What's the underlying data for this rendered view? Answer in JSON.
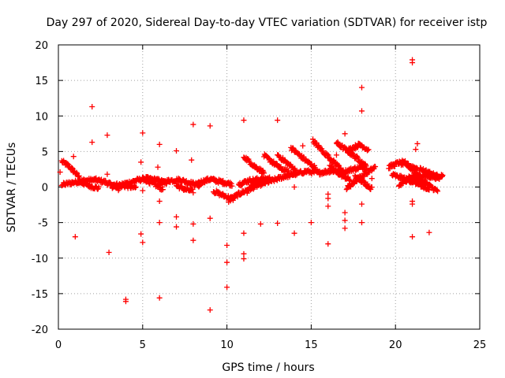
{
  "chart_data": {
    "type": "scatter",
    "title": "Day 297 of 2020, Sidereal Day-to-day VTEC variation (SDTVAR) for receiver istp",
    "xlabel": "GPS time / hours",
    "ylabel": "SDTVAR / TECUs",
    "xlim": [
      0,
      25
    ],
    "ylim": [
      -20,
      20
    ],
    "xticks": [
      0,
      5,
      10,
      15,
      20,
      25
    ],
    "yticks": [
      -20,
      -15,
      -10,
      -5,
      0,
      5,
      10,
      15,
      20
    ],
    "grid": true,
    "marker": "plus",
    "marker_color": "#ff0000",
    "series": [
      {
        "name": "SDTVAR",
        "segments": [
          [
            [
              0.2,
              3.6
            ],
            [
              0.6,
              3.0
            ],
            [
              1.0,
              2.0
            ],
            [
              1.3,
              1.2
            ]
          ],
          [
            [
              0.2,
              0.3
            ],
            [
              0.8,
              0.6
            ],
            [
              1.5,
              0.9
            ],
            [
              2.2,
              1.0
            ],
            [
              2.8,
              0.7
            ],
            [
              3.2,
              0.1
            ],
            [
              3.6,
              -0.3
            ]
          ],
          [
            [
              1.2,
              0.8
            ],
            [
              1.8,
              0.2
            ],
            [
              2.4,
              -0.2
            ]
          ],
          [
            [
              3.5,
              0.0
            ],
            [
              4.0,
              0.5
            ],
            [
              4.6,
              0.9
            ],
            [
              5.2,
              1.2
            ],
            [
              5.8,
              1.0
            ],
            [
              6.4,
              0.6
            ]
          ],
          [
            [
              3.0,
              0.5
            ],
            [
              3.8,
              0.2
            ],
            [
              4.6,
              -0.1
            ]
          ],
          [
            [
              5.0,
              1.2
            ],
            [
              5.6,
              0.5
            ],
            [
              6.2,
              -0.3
            ]
          ],
          [
            [
              6.0,
              0.5
            ],
            [
              6.6,
              0.9
            ],
            [
              7.2,
              1.0
            ],
            [
              7.8,
              0.6
            ],
            [
              8.4,
              0.2
            ]
          ],
          [
            [
              7.0,
              0.2
            ],
            [
              7.5,
              -0.3
            ],
            [
              8.0,
              -0.6
            ]
          ],
          [
            [
              8.3,
              0.6
            ],
            [
              9.0,
              1.1
            ],
            [
              9.7,
              0.7
            ],
            [
              10.3,
              0.4
            ]
          ],
          [
            [
              9.2,
              -0.6
            ],
            [
              9.8,
              -1.2
            ],
            [
              10.4,
              -1.7
            ]
          ],
          [
            [
              10.1,
              -1.9
            ],
            [
              10.7,
              -1.0
            ],
            [
              11.4,
              -0.2
            ],
            [
              12.0,
              0.4
            ],
            [
              12.7,
              0.9
            ],
            [
              13.3,
              1.4
            ],
            [
              14.0,
              1.8
            ],
            [
              14.7,
              2.2
            ],
            [
              15.5,
              2.0
            ],
            [
              16.2,
              2.3
            ],
            [
              16.9,
              2.1
            ],
            [
              17.6,
              2.6
            ],
            [
              18.2,
              2.8
            ]
          ],
          [
            [
              10.7,
              0.4
            ],
            [
              11.3,
              0.9
            ],
            [
              12.0,
              1.1
            ],
            [
              12.6,
              1.2
            ]
          ],
          [
            [
              11.2,
              -0.6
            ],
            [
              11.6,
              0.2
            ],
            [
              12.0,
              0.9
            ]
          ],
          [
            [
              11.0,
              4.3
            ],
            [
              11.6,
              3.0
            ],
            [
              12.2,
              2.0
            ]
          ],
          [
            [
              12.2,
              4.4
            ],
            [
              12.7,
              3.5
            ],
            [
              13.2,
              2.6
            ],
            [
              13.7,
              2.0
            ]
          ],
          [
            [
              13.0,
              4.5
            ],
            [
              13.6,
              3.3
            ],
            [
              14.1,
              2.3
            ]
          ],
          [
            [
              13.8,
              5.5
            ],
            [
              14.3,
              4.5
            ],
            [
              14.8,
              3.5
            ],
            [
              15.3,
              2.6
            ]
          ],
          [
            [
              15.1,
              6.5
            ],
            [
              15.7,
              5.0
            ],
            [
              16.3,
              3.6
            ],
            [
              16.9,
              2.3
            ]
          ],
          [
            [
              16.1,
              2.8
            ],
            [
              16.7,
              1.8
            ],
            [
              17.3,
              1.0
            ]
          ],
          [
            [
              16.5,
              6.2
            ],
            [
              17.2,
              5.0
            ],
            [
              17.8,
              3.9
            ],
            [
              18.3,
              2.8
            ]
          ],
          [
            [
              17.1,
              -0.2
            ],
            [
              17.7,
              1.0
            ],
            [
              18.3,
              2.0
            ],
            [
              18.8,
              2.8
            ]
          ],
          [
            [
              17.6,
              1.5
            ],
            [
              18.2,
              0.5
            ],
            [
              18.6,
              -0.2
            ]
          ],
          [
            [
              17.2,
              5.2
            ],
            [
              17.9,
              6.0
            ],
            [
              18.4,
              5.2
            ]
          ],
          [
            [
              19.6,
              2.8
            ],
            [
              20.2,
              3.4
            ],
            [
              20.8,
              3.0
            ],
            [
              21.3,
              2.6
            ]
          ],
          [
            [
              20.4,
              3.8
            ],
            [
              21.0,
              2.5
            ],
            [
              21.5,
              1.2
            ],
            [
              22.0,
              0.2
            ],
            [
              22.5,
              -0.6
            ]
          ],
          [
            [
              19.8,
              1.7
            ],
            [
              20.5,
              1.2
            ],
            [
              21.2,
              0.6
            ],
            [
              21.9,
              0.5
            ]
          ],
          [
            [
              20.2,
              0.1
            ],
            [
              20.7,
              1.1
            ],
            [
              21.3,
              1.6
            ],
            [
              22.0,
              1.5
            ],
            [
              22.6,
              1.3
            ],
            [
              22.8,
              1.8
            ]
          ],
          [
            [
              21.4,
              2.6
            ],
            [
              22.0,
              2.0
            ],
            [
              22.5,
              1.5
            ]
          ],
          [
            [
              20.8,
              1.7
            ],
            [
              21.4,
              0.4
            ],
            [
              22.0,
              -0.5
            ]
          ]
        ],
        "points": [
          [
            0.1,
            2.1
          ],
          [
            0.9,
            4.3
          ],
          [
            1.0,
            -7.0
          ],
          [
            2.0,
            11.3
          ],
          [
            2.0,
            6.3
          ],
          [
            2.9,
            7.3
          ],
          [
            3.0,
            -9.2
          ],
          [
            2.9,
            1.8
          ],
          [
            4.0,
            -15.8
          ],
          [
            4.0,
            -16.1
          ],
          [
            5.0,
            7.6
          ],
          [
            4.9,
            3.5
          ],
          [
            4.9,
            -6.6
          ],
          [
            5.0,
            -7.8
          ],
          [
            5.0,
            -0.5
          ],
          [
            6.0,
            6.0
          ],
          [
            5.9,
            2.8
          ],
          [
            6.0,
            -2.0
          ],
          [
            6.0,
            -5.0
          ],
          [
            6.0,
            -15.6
          ],
          [
            7.0,
            5.1
          ],
          [
            7.0,
            -4.2
          ],
          [
            7.0,
            -5.6
          ],
          [
            8.0,
            8.8
          ],
          [
            7.9,
            3.8
          ],
          [
            8.0,
            -5.2
          ],
          [
            8.0,
            -7.5
          ],
          [
            9.0,
            8.6
          ],
          [
            9.0,
            -4.4
          ],
          [
            9.0,
            -17.3
          ],
          [
            10.0,
            -8.2
          ],
          [
            10.0,
            -10.6
          ],
          [
            10.0,
            -14.1
          ],
          [
            11.0,
            9.4
          ],
          [
            11.0,
            -6.5
          ],
          [
            11.0,
            -9.4
          ],
          [
            11.0,
            -10.1
          ],
          [
            12.0,
            -5.2
          ],
          [
            13.0,
            9.4
          ],
          [
            13.0,
            -5.1
          ],
          [
            14.0,
            -6.5
          ],
          [
            14.0,
            0.0
          ],
          [
            15.0,
            -5.0
          ],
          [
            16.0,
            -1.0
          ],
          [
            16.0,
            -1.6
          ],
          [
            16.0,
            -2.7
          ],
          [
            16.0,
            -8.0
          ],
          [
            17.0,
            7.5
          ],
          [
            17.0,
            -3.6
          ],
          [
            17.0,
            -4.7
          ],
          [
            17.0,
            -5.8
          ],
          [
            18.0,
            14.0
          ],
          [
            18.0,
            10.7
          ],
          [
            18.0,
            -2.4
          ],
          [
            18.0,
            -5.0
          ],
          [
            21.0,
            17.9
          ],
          [
            21.0,
            17.5
          ],
          [
            21.0,
            -2.0
          ],
          [
            21.0,
            -2.4
          ],
          [
            21.0,
            -7.0
          ],
          [
            21.3,
            6.1
          ],
          [
            21.2,
            5.3
          ],
          [
            22.0,
            -6.4
          ],
          [
            18.6,
            1.2
          ],
          [
            14.5,
            5.8
          ],
          [
            16.5,
            4.5
          ]
        ]
      }
    ]
  }
}
